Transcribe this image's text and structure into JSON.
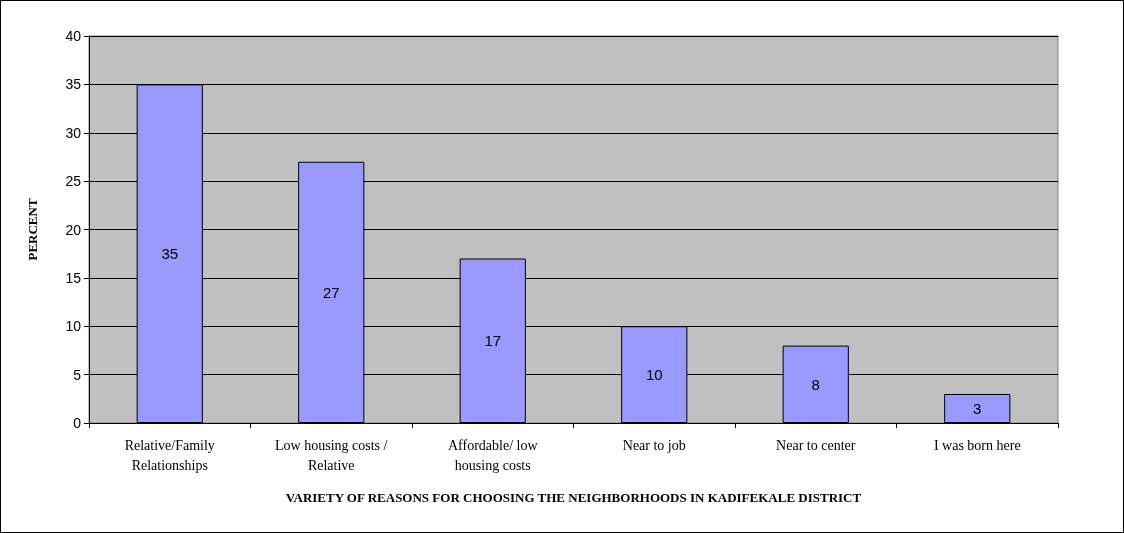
{
  "chart_data": {
    "type": "bar",
    "xlabel": "VARIETY OF REASONS FOR CHOOSING THE NEIGHBORHOODS IN KADIFEKALE DISTRICT",
    "ylabel": "PERCENT",
    "categories": [
      "Relative/Family\nRelationships",
      "Low housing costs /\nRelative",
      "Affordable/ low\nhousing costs",
      "Near to job",
      "Near to center",
      "I was born here"
    ],
    "values": [
      35,
      27,
      17,
      10,
      8,
      3
    ],
    "color": "#9999ff",
    "ylim": [
      0,
      40
    ],
    "yticks": [
      0,
      5,
      10,
      15,
      20,
      25,
      30,
      35,
      40
    ],
    "grid": "y",
    "data_labels": true
  }
}
